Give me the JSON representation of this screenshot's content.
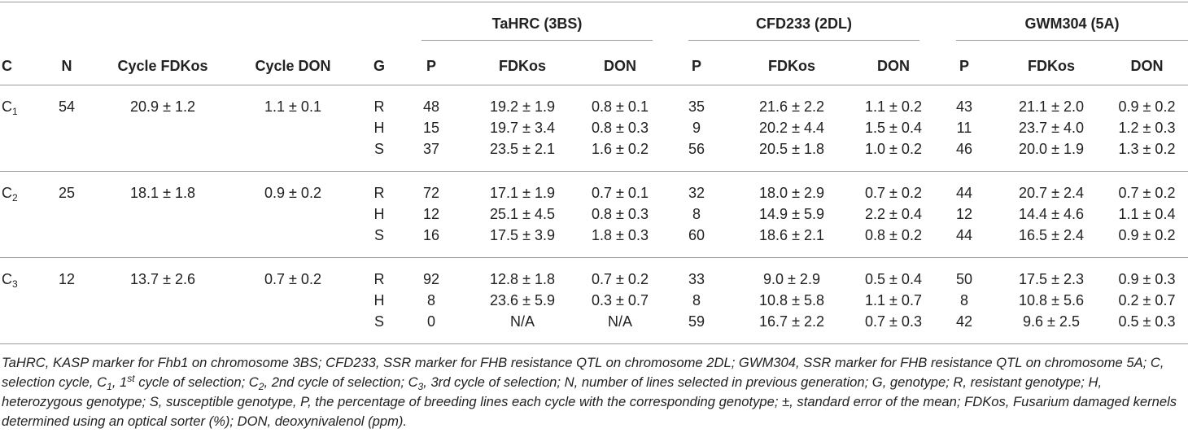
{
  "groups": [
    {
      "title": "TaHRC (3BS)"
    },
    {
      "title": "CFD233 (2DL)"
    },
    {
      "title": "GWM304 (5A)"
    }
  ],
  "headers": {
    "c": "C",
    "n": "N",
    "cycle_fdk": "Cycle FDKos",
    "cycle_don": "Cycle DON",
    "g": "G",
    "p": "P",
    "fdk": "FDKos",
    "don": "DON"
  },
  "cycles": [
    {
      "c_main": "C",
      "c_sub": "1",
      "n": "54",
      "cycle_fdk": "20.9 ± 1.2",
      "cycle_don": "1.1 ± 0.1",
      "rows": [
        {
          "g": "R",
          "v": [
            "48",
            "19.2 ± 1.9",
            "0.8 ± 0.1",
            "35",
            "21.6 ± 2.2",
            "1.1 ± 0.2",
            "43",
            "21.1 ± 2.0",
            "0.9 ± 0.2"
          ]
        },
        {
          "g": "H",
          "v": [
            "15",
            "19.7 ± 3.4",
            "0.8 ± 0.3",
            "9",
            "20.2 ± 4.4",
            "1.5 ± 0.4",
            "11",
            "23.7 ± 4.0",
            "1.2 ± 0.3"
          ]
        },
        {
          "g": "S",
          "v": [
            "37",
            "23.5 ± 2.1",
            "1.6 ± 0.2",
            "56",
            "20.5 ± 1.8",
            "1.0 ± 0.2",
            "46",
            "20.0 ± 1.9",
            "1.3 ± 0.2"
          ]
        }
      ]
    },
    {
      "c_main": "C",
      "c_sub": "2",
      "n": "25",
      "cycle_fdk": "18.1 ± 1.8",
      "cycle_don": "0.9 ± 0.2",
      "rows": [
        {
          "g": "R",
          "v": [
            "72",
            "17.1 ± 1.9",
            "0.7 ± 0.1",
            "32",
            "18.0 ± 2.9",
            "0.7 ± 0.2",
            "44",
            "20.7 ± 2.4",
            "0.7 ± 0.2"
          ]
        },
        {
          "g": "H",
          "v": [
            "12",
            "25.1 ± 4.5",
            "0.8 ± 0.3",
            "8",
            "14.9 ± 5.9",
            "2.2 ± 0.4",
            "12",
            "14.4 ± 4.6",
            "1.1 ± 0.4"
          ]
        },
        {
          "g": "S",
          "v": [
            "16",
            "17.5 ± 3.9",
            "1.8 ± 0.3",
            "60",
            "18.6 ± 2.1",
            "0.8 ± 0.2",
            "44",
            "16.5 ± 2.4",
            "0.9 ± 0.2"
          ]
        }
      ]
    },
    {
      "c_main": "C",
      "c_sub": "3",
      "n": "12",
      "cycle_fdk": "13.7 ± 2.6",
      "cycle_don": "0.7 ± 0.2",
      "rows": [
        {
          "g": "R",
          "v": [
            "92",
            "12.8 ± 1.8",
            "0.7 ± 0.2",
            "33",
            "9.0 ± 2.9",
            "0.5 ± 0.4",
            "50",
            "17.5 ± 2.3",
            "0.9 ± 0.3"
          ]
        },
        {
          "g": "H",
          "v": [
            "8",
            "23.6 ± 5.9",
            "0.3 ± 0.7",
            "8",
            "10.8 ± 5.8",
            "1.1 ± 0.7",
            "8",
            "10.8 ± 5.6",
            "0.2 ± 0.7"
          ]
        },
        {
          "g": "S",
          "v": [
            "0",
            "N/A",
            "N/A",
            "59",
            "16.7 ± 2.2",
            "0.7 ± 0.3",
            "42",
            "9.6 ± 2.5",
            "0.5 ± 0.3"
          ]
        }
      ]
    }
  ],
  "footnote": {
    "p1": "TaHRC, KASP marker for Fhb1 on chromosome 3BS; CFD233, SSR marker for FHB resistance QTL on chromosome 2DL; GWM304, SSR marker for FHB resistance QTL on chromosome 5A; C, selection cycle, C",
    "s1": "1",
    "p2": ", 1",
    "sup1": "st",
    "p3": " cycle of selection; C",
    "s2": "2",
    "p4": ", 2nd cycle of selection; C",
    "s3": "3",
    "p5": ", 3rd cycle of selection; N, number of lines selected in previous generation; G, genotype; R, resistant genotype; H, heterozygous genotype; S, susceptible genotype, P, the percentage of breeding lines each cycle with the corresponding genotype; ±, standard error of the mean; FDKos, Fusarium damaged kernels determined using an optical sorter (%); DON, deoxynivalenol (ppm)."
  }
}
